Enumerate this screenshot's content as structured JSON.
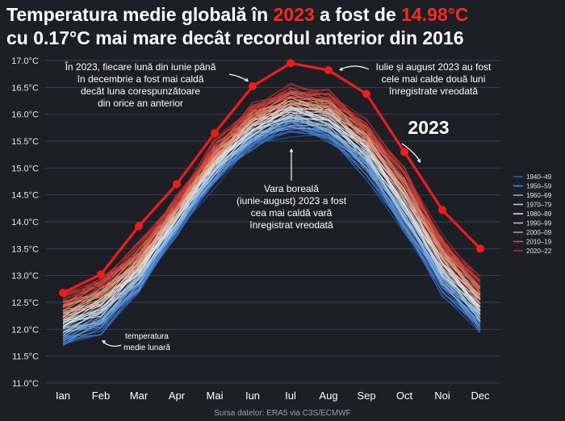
{
  "title": {
    "line1_prefix": "Temperatura medie globală în ",
    "line1_year": "2023",
    "line1_mid": " a fost de ",
    "line1_value": "14.98°C",
    "line2": "cu 0.17°C mai mare decât recordul anterior din 2016"
  },
  "source": "Sursa datelor: ERA5 via C3S/ECMWF",
  "colors": {
    "background": "#1c1f26",
    "highlight": "#ff2a1a",
    "year2023": "#ee1c1c",
    "cold": "#4a90d9",
    "warm": "#c0392b"
  },
  "chart_data": {
    "type": "line",
    "x": [
      "Ian",
      "Feb",
      "Mar",
      "Apr",
      "Mai",
      "Iun",
      "Iul",
      "Aug",
      "Sep",
      "Oct",
      "Noi",
      "Dec"
    ],
    "y_ticks": [
      "11.0°C",
      "11.5°C",
      "12.0°C",
      "12.5°C",
      "13.0°C",
      "13.5°C",
      "14.0°C",
      "14.5°C",
      "15.0°C",
      "15.5°C",
      "16.0°C",
      "16.5°C",
      "17.0°C"
    ],
    "ylim": [
      11.0,
      17.0
    ],
    "grid": true,
    "legend_position": "right",
    "legend": [
      "1940–49",
      "1950–59",
      "1960–69",
      "1970–79",
      "1980–89",
      "1990–99",
      "2000–09",
      "2010–19",
      "2020–22"
    ],
    "series": [
      {
        "name": "2023",
        "values": [
          12.68,
          13.02,
          13.92,
          14.7,
          15.65,
          16.52,
          16.95,
          16.82,
          16.38,
          15.3,
          14.22,
          13.5
        ]
      }
    ],
    "background_years_range": [
      1940,
      2022
    ],
    "background_early": [
      11.7,
      11.95,
      12.7,
      13.8,
      14.75,
      15.4,
      15.7,
      15.52,
      14.88,
      13.8,
      12.7,
      11.95
    ],
    "background_late": [
      12.6,
      12.95,
      13.55,
      14.45,
      15.45,
      16.15,
      16.5,
      16.4,
      15.85,
      14.95,
      13.7,
      12.9
    ],
    "annotations": {
      "left_top": [
        "În 2023, fiecare lună din iunie până",
        "în decembrie a fost mai caldă",
        "decât luna corespunzătoare",
        "din orice an anterior"
      ],
      "right_top": [
        "Iulie și august 2023 au fost",
        "cele mai calde două luni",
        "înregistrate vreodată"
      ],
      "middle": [
        "Vara boreală",
        "(iunie-august) 2023 a fost",
        "cea mai caldă vară",
        "înregistrat vreodată"
      ],
      "bottom_left": [
        "temperatura",
        "medie lunară"
      ],
      "year_label": "2023"
    }
  }
}
